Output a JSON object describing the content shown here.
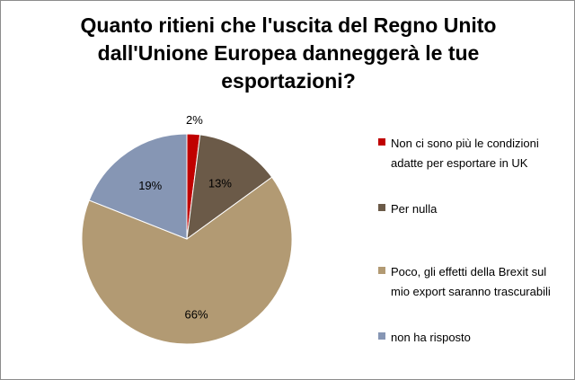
{
  "chart_data": {
    "type": "pie",
    "title": "Quanto ritieni che l'uscita del Regno Unito\ndall'Unione Europea danneggerà le tue\nesportazioni?",
    "categories": [
      "Non ci sono più le condizioni adatte per esportare in UK",
      "Per nulla",
      "Poco, gli effetti della Brexit sul mio export saranno trascurabili",
      "non ha risposto"
    ],
    "values": [
      2,
      13,
      66,
      19
    ],
    "data_labels": [
      "2%",
      "13%",
      "66%",
      "19%"
    ],
    "colors": [
      "#c00000",
      "#6b5a48",
      "#b29a73",
      "#8696b4"
    ],
    "legend_position": "right"
  }
}
